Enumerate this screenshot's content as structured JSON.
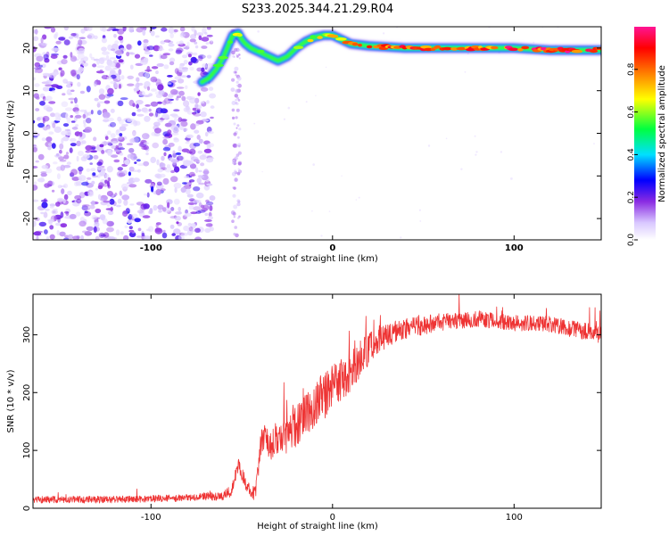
{
  "figure_title": "S233.2025.344.21.29.R04",
  "chart_data": [
    {
      "type": "heatmap",
      "title": "S233.2025.344.21.29.R04",
      "xlabel": "Height of straight line (km)",
      "ylabel": "Frequency (Hz)",
      "xlim": [
        -165,
        148
      ],
      "ylim": [
        -25,
        25
      ],
      "xticks": [
        -100,
        0,
        100
      ],
      "yticks": [
        -20,
        -10,
        0,
        10,
        20
      ],
      "colorbar": {
        "label": "Normalized spectral amplitude",
        "range": [
          0,
          1
        ],
        "ticks": [
          0.0,
          0.2,
          0.4,
          0.6,
          0.8
        ],
        "colormap": [
          "#ffffff",
          "#d9c8ff",
          "#8a2be2",
          "#0000ff",
          "#00e0ff",
          "#00ff40",
          "#ffff00",
          "#ff8000",
          "#ff0000",
          "#ff1493"
        ]
      },
      "noise_region_x": [
        -165,
        -50
      ],
      "ridge": {
        "x": [
          -72,
          -68,
          -64,
          -60,
          -57,
          -55,
          -52,
          -50,
          -48,
          -45,
          -40,
          -35,
          -30,
          -25,
          -20,
          -15,
          -10,
          -5,
          0,
          5,
          10,
          20,
          40,
          60,
          80,
          100,
          120,
          140,
          148
        ],
        "y": [
          12,
          13,
          15,
          18,
          21,
          23,
          23.5,
          22,
          21,
          20,
          19,
          18,
          17,
          18,
          20,
          21.5,
          22.5,
          23,
          23,
          22,
          21,
          20.5,
          20,
          20,
          20,
          20,
          19.5,
          19.5,
          19.5
        ],
        "amplitude": [
          0.3,
          0.35,
          0.5,
          0.6,
          0.5,
          0.7,
          0.75,
          0.6,
          0.45,
          0.5,
          0.55,
          0.5,
          0.5,
          0.55,
          0.6,
          0.65,
          0.7,
          0.75,
          0.8,
          0.85,
          0.9,
          0.95,
          0.9,
          1.0,
          0.9,
          0.95,
          1.0,
          0.95,
          0.9
        ]
      }
    },
    {
      "type": "line",
      "xlabel": "Height of straight line (km)",
      "ylabel": "SNR (10 * v/v)",
      "xlim": [
        -165,
        148
      ],
      "ylim": [
        0,
        370
      ],
      "xticks": [
        -100,
        0,
        100
      ],
      "yticks": [
        0,
        100,
        200,
        300
      ],
      "color": "#ee3333",
      "envelope": {
        "x": [
          -165,
          -120,
          -80,
          -60,
          -56,
          -52,
          -48,
          -44,
          -42,
          -40,
          -38,
          -34,
          -28,
          -20,
          -12,
          -6,
          0,
          6,
          12,
          18,
          24,
          30,
          40,
          60,
          80,
          100,
          120,
          140,
          148
        ],
        "mean": [
          15,
          15,
          18,
          22,
          30,
          75,
          45,
          20,
          35,
          105,
          125,
          110,
          120,
          140,
          175,
          190,
          210,
          225,
          245,
          270,
          290,
          300,
          310,
          322,
          328,
          320,
          318,
          305,
          300
        ],
        "noise": [
          6,
          6,
          6,
          8,
          10,
          15,
          12,
          8,
          15,
          25,
          25,
          28,
          30,
          35,
          40,
          45,
          40,
          40,
          35,
          30,
          25,
          22,
          18,
          15,
          14,
          14,
          14,
          15,
          15
        ]
      }
    }
  ]
}
